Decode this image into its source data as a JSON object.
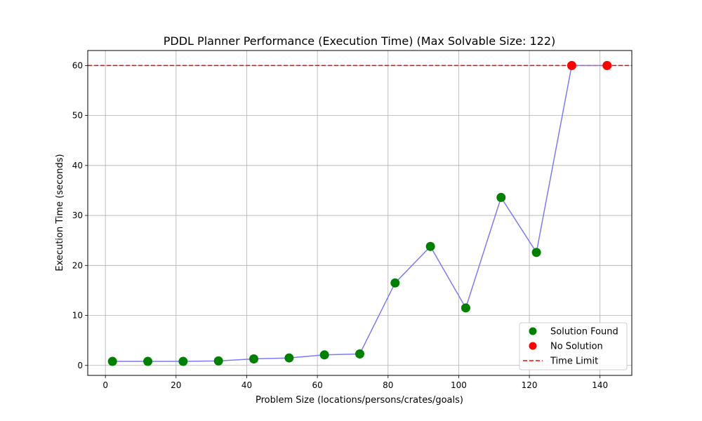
{
  "chart_data": {
    "type": "scatter",
    "title": "PDDL Planner Performance (Execution Time) (Max Solvable Size: 122)",
    "xlabel": "Problem Size (locations/persons/crates/goals)",
    "ylabel": "Execution Time (seconds)",
    "xlim": [
      -5,
      149
    ],
    "ylim": [
      -2,
      63
    ],
    "xticks": [
      0,
      20,
      40,
      60,
      80,
      100,
      120,
      140
    ],
    "yticks": [
      0,
      10,
      20,
      30,
      40,
      50,
      60
    ],
    "grid": true,
    "legend_position": "lower-right",
    "line": {
      "color": "#7b7bf5",
      "x": [
        2,
        12,
        22,
        32,
        42,
        52,
        62,
        72,
        82,
        92,
        102,
        112,
        122,
        132,
        142
      ],
      "y": [
        0.8,
        0.8,
        0.8,
        0.9,
        1.3,
        1.5,
        2.1,
        2.3,
        16.5,
        23.8,
        11.5,
        33.6,
        22.6,
        60,
        60
      ]
    },
    "series": [
      {
        "name": "Solution Found",
        "color": "#008000",
        "x": [
          2,
          12,
          22,
          32,
          42,
          52,
          62,
          72,
          82,
          92,
          102,
          112,
          122
        ],
        "y": [
          0.8,
          0.8,
          0.8,
          0.9,
          1.3,
          1.5,
          2.1,
          2.3,
          16.5,
          23.8,
          11.5,
          33.6,
          22.6
        ]
      },
      {
        "name": "No Solution",
        "color": "#ff0000",
        "x": [
          132,
          142
        ],
        "y": [
          60,
          60
        ]
      }
    ],
    "reference_lines": [
      {
        "name": "Time Limit",
        "y": 60,
        "color": "#ff0000",
        "style": "dashed"
      }
    ]
  }
}
